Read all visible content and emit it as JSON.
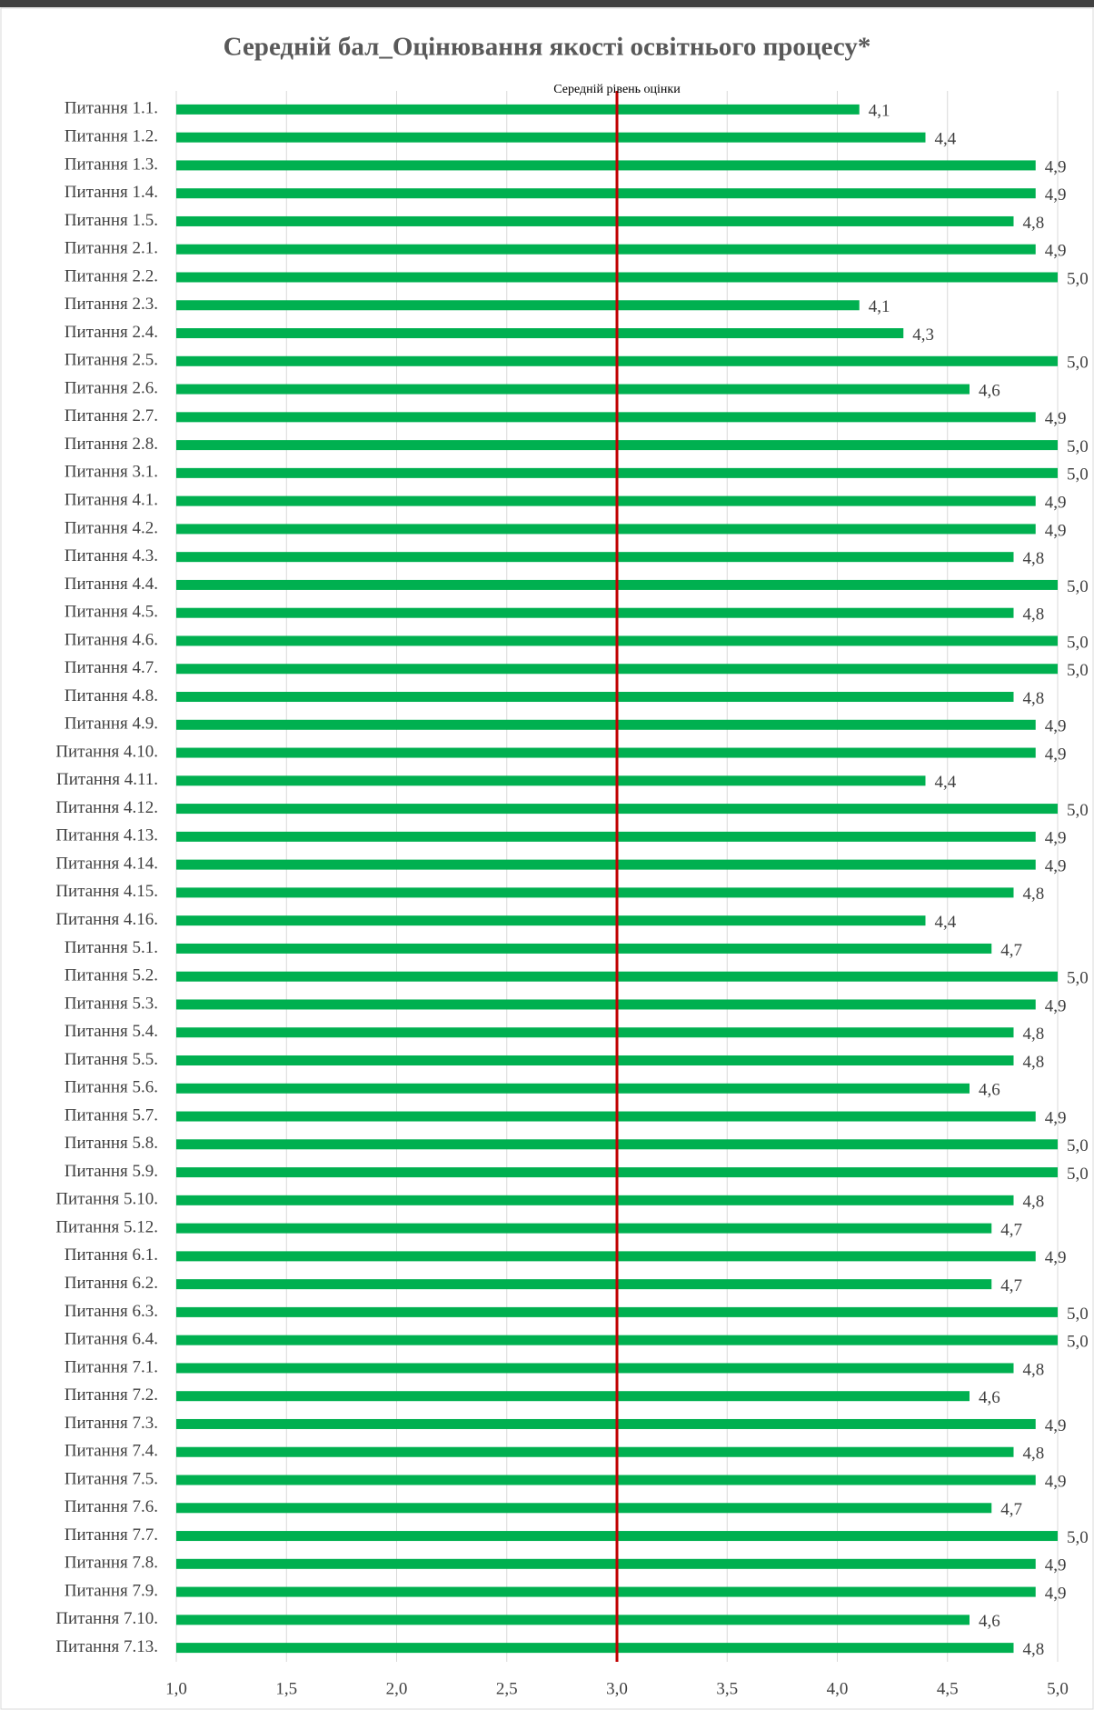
{
  "chart_data": {
    "type": "bar",
    "orientation": "horizontal",
    "title": "Середній бал_Оцінювання якості освітнього процесу*",
    "categories": [
      "Питання 1.1.",
      "Питання 1.2.",
      "Питання 1.3.",
      "Питання 1.4.",
      "Питання 1.5.",
      "Питання 2.1.",
      "Питання 2.2.",
      "Питання 2.3.",
      "Питання 2.4.",
      "Питання 2.5.",
      "Питання 2.6.",
      "Питання 2.7.",
      "Питання 2.8.",
      "Питання 3.1.",
      "Питання 4.1.",
      "Питання 4.2.",
      "Питання 4.3.",
      "Питання 4.4.",
      "Питання 4.5.",
      "Питання 4.6.",
      "Питання 4.7.",
      "Питання 4.8.",
      "Питання 4.9.",
      "Питання 4.10.",
      "Питання 4.11.",
      "Питання 4.12.",
      "Питання 4.13.",
      "Питання 4.14.",
      "Питання 4.15.",
      "Питання 4.16.",
      "Питання 5.1.",
      "Питання 5.2.",
      "Питання 5.3.",
      "Питання 5.4.",
      "Питання 5.5.",
      "Питання 5.6.",
      "Питання 5.7.",
      "Питання 5.8.",
      "Питання 5.9.",
      "Питання 5.10.",
      "Питання 5.12.",
      "Питання 6.1.",
      "Питання 6.2.",
      "Питання 6.3.",
      "Питання 6.4.",
      "Питання 7.1.",
      "Питання 7.2.",
      "Питання 7.3.",
      "Питання 7.4.",
      "Питання 7.5.",
      "Питання 7.6.",
      "Питання 7.7.",
      "Питання 7.8.",
      "Питання 7.9.",
      "Питання 7.10.",
      "Питання 7.13."
    ],
    "values": [
      4.1,
      4.4,
      4.9,
      4.9,
      4.8,
      4.9,
      5.0,
      4.1,
      4.3,
      5.0,
      4.6,
      4.9,
      5.0,
      5.0,
      4.9,
      4.9,
      4.8,
      5.0,
      4.8,
      5.0,
      5.0,
      4.8,
      4.9,
      4.9,
      4.4,
      5.0,
      4.9,
      4.9,
      4.8,
      4.4,
      4.7,
      5.0,
      4.9,
      4.8,
      4.8,
      4.6,
      4.9,
      5.0,
      5.0,
      4.8,
      4.7,
      4.9,
      4.7,
      5.0,
      5.0,
      4.8,
      4.6,
      4.9,
      4.8,
      4.9,
      4.7,
      5.0,
      4.9,
      4.9,
      4.6,
      4.8
    ],
    "value_labels": [
      "4,1",
      "4,4",
      "4,9",
      "4,9",
      "4,8",
      "4,9",
      "5,0",
      "4,1",
      "4,3",
      "5,0",
      "4,6",
      "4,9",
      "5,0",
      "5,0",
      "4,9",
      "4,9",
      "4,8",
      "5,0",
      "4,8",
      "5,0",
      "5,0",
      "4,8",
      "4,9",
      "4,9",
      "4,4",
      "5,0",
      "4,9",
      "4,9",
      "4,8",
      "4,4",
      "4,7",
      "5,0",
      "4,9",
      "4,8",
      "4,8",
      "4,6",
      "4,9",
      "5,0",
      "5,0",
      "4,8",
      "4,7",
      "4,9",
      "4,7",
      "5,0",
      "5,0",
      "4,8",
      "4,6",
      "4,9",
      "4,8",
      "4,9",
      "4,7",
      "5,0",
      "4,9",
      "4,9",
      "4,6",
      "4,8"
    ],
    "color": "#00b050",
    "xlim": [
      1,
      5
    ],
    "xticks": [
      {
        "value": 1,
        "label": "1,0"
      },
      {
        "value": 1.5,
        "label": "1,5"
      },
      {
        "value": 2,
        "label": "2,0"
      },
      {
        "value": 2.5,
        "label": "2,5"
      },
      {
        "value": 3,
        "label": "3,0"
      },
      {
        "value": 3.5,
        "label": "3,5"
      },
      {
        "value": 4,
        "label": "4,0"
      },
      {
        "value": 4.5,
        "label": "4,5"
      },
      {
        "value": 5,
        "label": "5,0"
      }
    ],
    "grid": true,
    "reference_line": {
      "value": 3,
      "label": "Середній рівень оцінки",
      "color": "#c00000"
    }
  }
}
